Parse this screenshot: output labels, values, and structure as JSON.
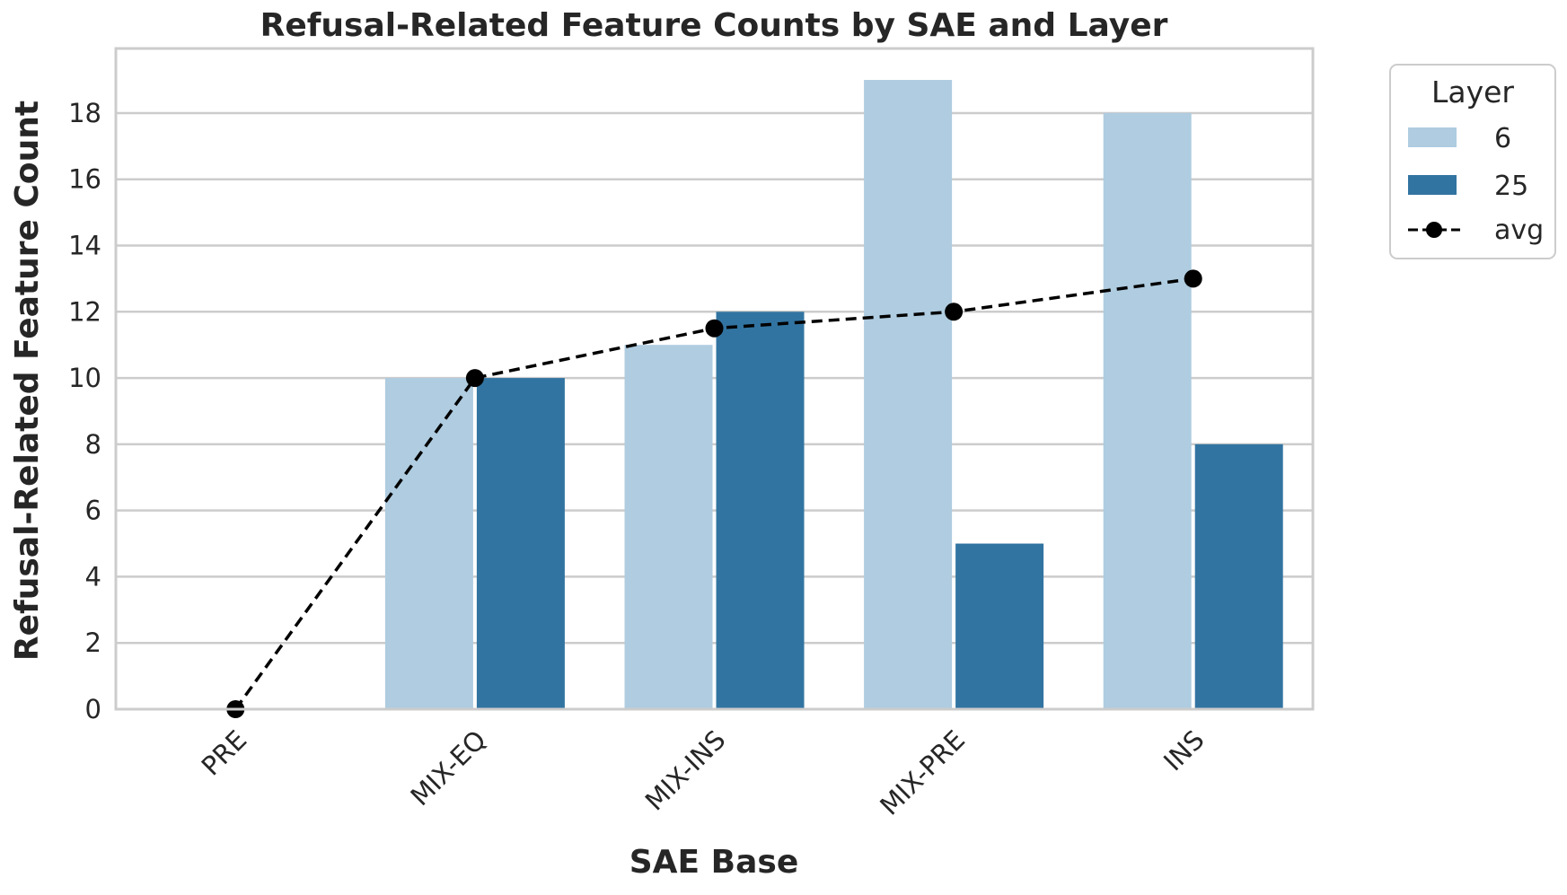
{
  "chart_data": {
    "type": "bar",
    "title": "Refusal-Related Feature Counts by SAE and Layer",
    "xlabel": "SAE Base",
    "ylabel": "Refusal-Related Feature Count",
    "categories": [
      "PRE",
      "MIX-EQ",
      "MIX-INS",
      "MIX-PRE",
      "INS"
    ],
    "series": [
      {
        "name": "6",
        "values": [
          0,
          10,
          11,
          19,
          18
        ],
        "color": "#afcce0"
      },
      {
        "name": "25",
        "values": [
          0,
          10,
          12,
          5,
          8
        ],
        "color": "#3274a1"
      }
    ],
    "line_series": {
      "name": "avg",
      "values": [
        0,
        10,
        11.5,
        12,
        13
      ],
      "color": "#000000",
      "style": "dashed",
      "marker": "circle"
    },
    "ylim": [
      0,
      19.95
    ],
    "yticks": [
      0,
      2,
      4,
      6,
      8,
      10,
      12,
      14,
      16,
      18
    ],
    "grid": true,
    "legend": {
      "title": "Layer",
      "placement": "outside-top-right"
    }
  }
}
